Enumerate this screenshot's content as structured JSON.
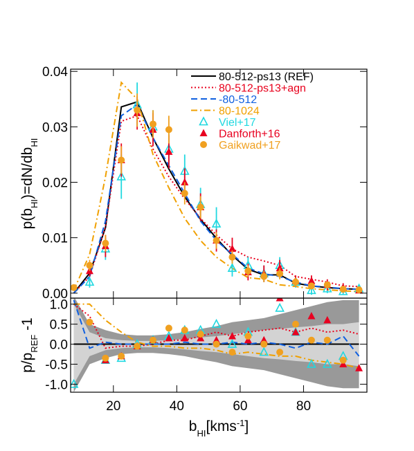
{
  "chart_data": [
    {
      "type": "line",
      "ylabel_parts": [
        {
          "t": "p(b"
        },
        {
          "t": "HI",
          "s": "sub"
        },
        {
          "t": ")=dN/db"
        },
        {
          "t": "HI",
          "s": "sub"
        }
      ],
      "x": [
        7.5,
        12.5,
        17.5,
        22.5,
        27.5,
        32.5,
        37.5,
        42.5,
        47.5,
        52.5,
        57.5,
        62.5,
        67.5,
        72.5,
        77.5,
        82.5,
        87.5,
        92.5,
        97.5
      ],
      "xlim": [
        6.5,
        100
      ],
      "xticks": [
        20,
        40,
        60,
        80
      ],
      "show_xtick_labels": false,
      "ylim": [
        -0.0009,
        0.0404
      ],
      "yticks": [
        {
          "value": 0,
          "label": "0.00"
        },
        0.01,
        0.02,
        0.03,
        0.04
      ],
      "legend": "upper right",
      "series": [
        {
          "name": "80-512-ps13 (REF)",
          "color": "#000000",
          "dash": "solid",
          "values": [
            0,
            0.0036,
            0.0118,
            0.0336,
            0.0345,
            0.028,
            0.0224,
            0.0174,
            0.0133,
            0.0099,
            0.0068,
            0.0043,
            0.0033,
            0.0033,
            0.0018,
            0.0013,
            0.001,
            0.0008,
            0.0007
          ]
        },
        {
          "name": "80-512-ps13+agn",
          "color": "#e8001c",
          "dash": "dot",
          "values": [
            0,
            0.003,
            0.012,
            0.031,
            0.032,
            0.026,
            0.021,
            0.017,
            0.0135,
            0.0105,
            0.008,
            0.0065,
            0.0058,
            0.005,
            0.003,
            0.0025,
            0.002,
            0.0013,
            0.0012
          ]
        },
        {
          "name": "-80-512",
          "color": "#1060e0",
          "dash": "dash",
          "values": [
            0,
            0.003,
            0.013,
            0.032,
            0.034,
            0.028,
            0.023,
            0.018,
            0.013,
            0.0095,
            0.007,
            0.0045,
            0.0035,
            0.003,
            0.002,
            0.0013,
            0.0011,
            0.0008,
            0.0007
          ]
        },
        {
          "name": "80-1024",
          "color": "#f0a000",
          "dash": "dashdot",
          "values": [
            0.0005,
            0.007,
            0.021,
            0.038,
            0.035,
            0.025,
            0.019,
            0.0135,
            0.0095,
            0.0065,
            0.0045,
            0.0028,
            0.0025,
            0.0015,
            0.0012,
            0.0008,
            0.0006,
            0.0004,
            0.0003
          ]
        },
        {
          "name": "Viel+17",
          "color": "#20d8e0",
          "marker": "triangle-open",
          "values": [
            null,
            0.002,
            0.008,
            0.021,
            0.034,
            0.03,
            0.026,
            0.022,
            0.016,
            0.0125,
            0.0045,
            0.005,
            0.0035,
            0.005,
            0.002,
            0.0005,
            0.0008,
            0.0003,
            0.0008
          ],
          "errors": [
            null,
            0.001,
            0.002,
            0.004,
            0.004,
            0.003,
            0.003,
            0.003,
            0.003,
            0.003,
            0.0015,
            0.0015,
            0.0015,
            0.0015,
            0.001,
            0.0008,
            0.0008,
            0.0005,
            0.0005
          ]
        },
        {
          "name": "Danforth+16",
          "color": "#e80020",
          "marker": "triangle",
          "values": [
            null,
            0.004,
            0.0085,
            0.024,
            0.0325,
            0.0295,
            0.0255,
            0.02,
            0.0155,
            0.0095,
            0.008,
            0.0038,
            0.0035,
            0.0045,
            0.0022,
            0.0022,
            0.0015,
            0.001,
            0.0005
          ],
          "errors": [
            null,
            0.001,
            0.002,
            0.003,
            0.003,
            0.003,
            0.003,
            0.0025,
            0.0025,
            0.002,
            0.002,
            0.0015,
            0.0015,
            0.0015,
            0.001,
            0.001,
            0.001,
            0.0008,
            0.0005
          ]
        },
        {
          "name": "Gaikwad+17",
          "color": "#f0a020",
          "marker": "circle",
          "values": [
            0.001,
            0.005,
            0.009,
            0.024,
            0.033,
            0.0305,
            0.0295,
            0.018,
            0.0155,
            0.0095,
            0.0065,
            0.004,
            0.003,
            0.0035,
            0.002,
            0.0013,
            0.0015,
            0.0007,
            0.0006
          ],
          "errors": [
            0.0005,
            0.001,
            0.0015,
            0.0025,
            0.003,
            0.0025,
            0.0025,
            0.002,
            0.002,
            0.0015,
            0.0012,
            0.001,
            0.001,
            0.001,
            0.0008,
            0.0006,
            0.0006,
            0.0005,
            0.0004
          ]
        }
      ]
    },
    {
      "type": "line",
      "xlabel_parts": [
        {
          "t": "b"
        },
        {
          "t": "HI",
          "s": "sub"
        },
        {
          "t": "[kms"
        },
        {
          "t": "-1",
          "s": "sup"
        },
        {
          "t": "]"
        }
      ],
      "ylabel_parts": [
        {
          "t": "p/p"
        },
        {
          "t": "REF",
          "s": "sub"
        },
        {
          "t": " -1"
        }
      ],
      "x": [
        7.5,
        12.5,
        17.5,
        22.5,
        27.5,
        32.5,
        37.5,
        42.5,
        47.5,
        52.5,
        57.5,
        62.5,
        67.5,
        72.5,
        77.5,
        82.5,
        87.5,
        92.5,
        97.5
      ],
      "xlim": [
        6.5,
        100
      ],
      "xticks": [
        20,
        40,
        60,
        80
      ],
      "show_xtick_labels": true,
      "ylim": [
        -1.2,
        1.15
      ],
      "yticks": [
        {
          "value": -1,
          "label": "-1.0"
        },
        -0.5,
        {
          "value": 0,
          "label": "0.0"
        },
        0.5,
        {
          "value": 1,
          "label": "1.0"
        }
      ],
      "bands": [
        {
          "color": "#999999",
          "upper": [
            1.2,
            0.5,
            0.35,
            0.25,
            0.22,
            0.22,
            0.25,
            0.3,
            0.38,
            0.45,
            0.55,
            0.6,
            0.65,
            0.75,
            0.85,
            0.95,
            1.05,
            1.1,
            1.1
          ],
          "lower": [
            -1.2,
            -0.5,
            -0.35,
            -0.25,
            -0.22,
            -0.22,
            -0.25,
            -0.3,
            -0.38,
            -0.45,
            -0.55,
            -0.6,
            -0.65,
            -0.75,
            -0.85,
            -0.95,
            -1.05,
            -1.1,
            -1.1
          ]
        },
        {
          "color": "#d3d3d3",
          "upper": [
            1.0,
            0.3,
            0.15,
            0.1,
            0.08,
            0.08,
            0.1,
            0.13,
            0.17,
            0.2,
            0.25,
            0.3,
            0.35,
            0.38,
            0.42,
            0.45,
            0.5,
            0.5,
            0.55
          ],
          "lower": [
            -1.0,
            -0.3,
            -0.15,
            -0.1,
            -0.08,
            -0.08,
            -0.1,
            -0.13,
            -0.17,
            -0.2,
            -0.25,
            -0.3,
            -0.35,
            -0.38,
            -0.42,
            -0.45,
            -0.5,
            -0.5,
            -0.55
          ]
        }
      ],
      "series": [
        {
          "color": "#000000",
          "dash": "solid",
          "values": [
            0,
            0,
            0,
            0,
            0,
            0,
            0,
            0,
            0,
            0,
            0,
            0,
            0,
            0,
            0,
            0,
            0,
            0,
            0
          ]
        },
        {
          "color": "#e8001c",
          "dash": "dot",
          "values": [
            1.0,
            0.7,
            -0.1,
            -0.05,
            -0.05,
            0.0,
            0.1,
            0.1,
            0.2,
            0.3,
            0.2,
            0.3,
            0.35,
            0.4,
            0.3,
            0.4,
            0.3,
            0.35,
            0.25
          ]
        },
        {
          "color": "#1060e0",
          "dash": "dash",
          "values": [
            1.1,
            -0.1,
            0.05,
            0.0,
            0.0,
            0.0,
            0.0,
            0.05,
            0.0,
            0.0,
            0.05,
            0.0,
            0.05,
            0.0,
            -0.1,
            0.05,
            0.0,
            0.2,
            -0.3
          ]
        },
        {
          "color": "#f0a000",
          "dash": "dashdot",
          "values": [
            1.0,
            1.0,
            0.6,
            0.3,
            0.05,
            -0.05,
            -0.05,
            -0.1,
            -0.1,
            -0.15,
            -0.25,
            -0.2,
            -0.25,
            -0.3,
            -0.3,
            -0.4,
            -0.45,
            -0.5,
            -0.6
          ]
        },
        {
          "color": "#20d8e0",
          "marker": "triangle-open",
          "values": [
            -1.0,
            null,
            -0.4,
            -0.35,
            0.0,
            0.1,
            0.2,
            0.35,
            0.35,
            0.5,
            0.0,
            0.3,
            -0.2,
            0.9,
            0.3,
            -0.5,
            -0.5,
            -0.3,
            null
          ]
        },
        {
          "color": "#e80020",
          "marker": "triangle",
          "values": [
            null,
            null,
            -0.4,
            -0.3,
            -0.05,
            0.1,
            0.15,
            0.15,
            0.15,
            0.1,
            0.2,
            0.1,
            0.1,
            1.15,
            0.3,
            0.7,
            0.6,
            -0.5,
            -0.6
          ]
        },
        {
          "color": "#f0a020",
          "marker": "circle",
          "values": [
            null,
            0.55,
            -0.35,
            -0.3,
            -0.05,
            0.1,
            0.4,
            0.35,
            0.25,
            0.0,
            -0.2,
            0.2,
            0.0,
            -0.2,
            0.5,
            0.1,
            0.1,
            -0.4,
            null
          ]
        }
      ]
    }
  ]
}
